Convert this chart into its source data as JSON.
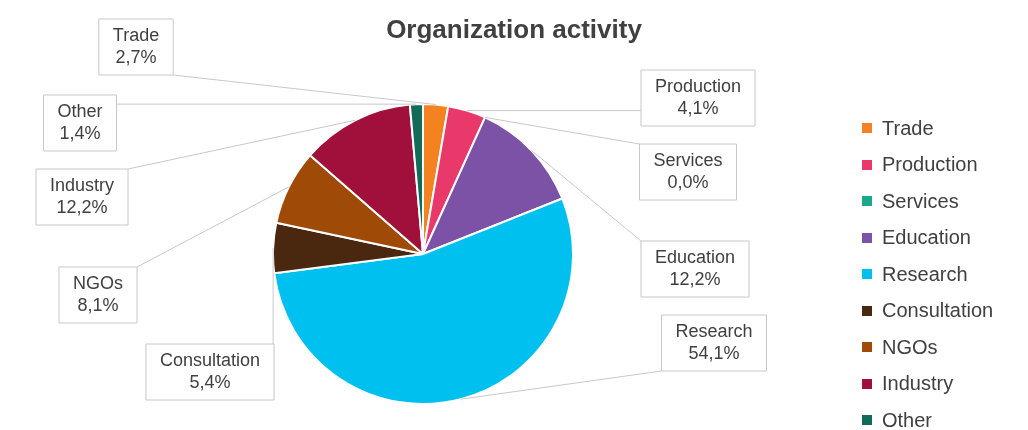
{
  "chart_data": {
    "type": "pie",
    "title": "Organization activity",
    "categories": [
      "Trade",
      "Production",
      "Services",
      "Education",
      "Research",
      "Consultation",
      "NGOs",
      "Industry",
      "Other"
    ],
    "values": [
      2.7,
      4.1,
      0.0,
      12.2,
      54.1,
      5.4,
      8.1,
      12.2,
      1.4
    ],
    "colors": [
      "#f58220",
      "#e8396a",
      "#1aa88a",
      "#7b52a6",
      "#00c0f0",
      "#4a2810",
      "#a04a08",
      "#a0103a",
      "#116a5a"
    ],
    "value_labels": [
      "2,7%",
      "4,1%",
      "0,0%",
      "12,2%",
      "54,1%",
      "5,4%",
      "8,1%",
      "12,2%",
      "1,4%"
    ],
    "legend": "right"
  }
}
